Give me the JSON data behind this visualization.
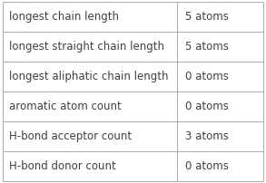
{
  "rows": [
    [
      "longest chain length",
      "5 atoms"
    ],
    [
      "longest straight chain length",
      "5 atoms"
    ],
    [
      "longest aliphatic chain length",
      "0 atoms"
    ],
    [
      "aromatic atom count",
      "0 atoms"
    ],
    [
      "H-bond acceptor count",
      "3 atoms"
    ],
    [
      "H-bond donor count",
      "0 atoms"
    ]
  ],
  "col_split": 0.67,
  "background_color": "#ffffff",
  "border_color": "#aaaaaa",
  "text_color": "#404040",
  "font_size": 8.5
}
